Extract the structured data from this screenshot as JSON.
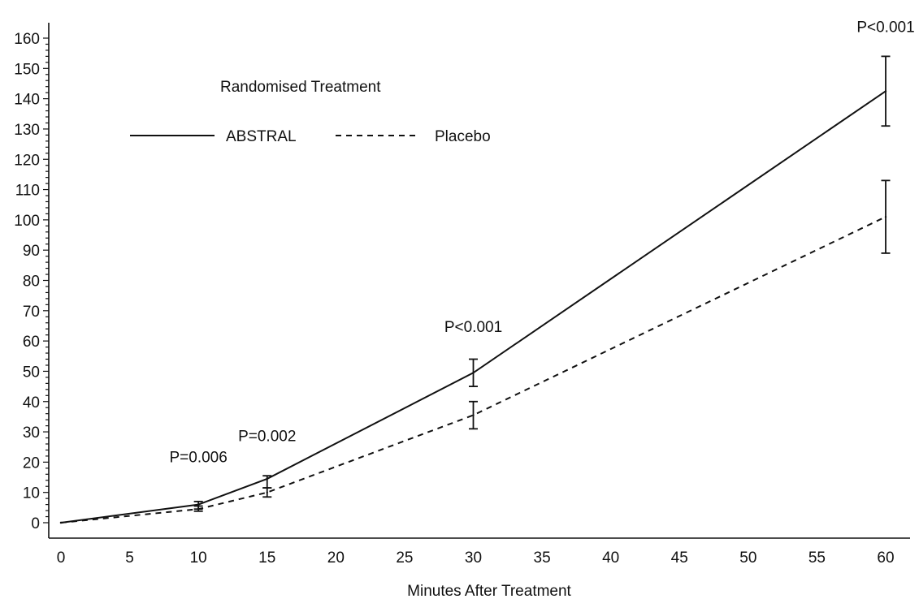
{
  "chart_data": {
    "type": "line",
    "title": "",
    "xlabel": "Minutes After Treatment",
    "ylabel": "",
    "x_ticks": [
      0,
      5,
      10,
      15,
      20,
      25,
      30,
      35,
      40,
      45,
      50,
      55,
      60
    ],
    "y_ticks": [
      0,
      10,
      20,
      30,
      40,
      50,
      60,
      70,
      80,
      90,
      100,
      110,
      120,
      130,
      140,
      150,
      160
    ],
    "xlim": [
      -0.6,
      61.5
    ],
    "ylim": [
      -2,
      164
    ],
    "grid": false,
    "legend": {
      "title": "Randomised Treatment",
      "placement": "top-left"
    },
    "series": [
      {
        "name": "ABSTRAL",
        "style": "solid",
        "color": "#111111",
        "points": [
          {
            "x": 0,
            "y": 0
          },
          {
            "x": 10,
            "y": 6
          },
          {
            "x": 15,
            "y": 14.5
          },
          {
            "x": 30,
            "y": 49.5
          },
          {
            "x": 60,
            "y": 142.5
          }
        ],
        "error_bars": [
          {
            "x": 10,
            "low": 4.5,
            "high": 7
          },
          {
            "x": 15,
            "low": 11.5,
            "high": 15.5
          },
          {
            "x": 30,
            "low": 45,
            "high": 54
          },
          {
            "x": 60,
            "low": 131,
            "high": 154
          }
        ]
      },
      {
        "name": "Placebo",
        "style": "dashed",
        "color": "#111111",
        "points": [
          {
            "x": 0,
            "y": 0
          },
          {
            "x": 10,
            "y": 4.5
          },
          {
            "x": 15,
            "y": 10
          },
          {
            "x": 30,
            "y": 35.5
          },
          {
            "x": 60,
            "y": 101
          }
        ],
        "error_bars": [
          {
            "x": 10,
            "low": 3.8,
            "high": 5.5
          },
          {
            "x": 15,
            "low": 8.5,
            "high": 11.5
          },
          {
            "x": 30,
            "low": 31,
            "high": 40
          },
          {
            "x": 60,
            "low": 89,
            "high": 113
          }
        ]
      }
    ],
    "annotations": [
      {
        "text": "P=0.006",
        "x": 10,
        "y": 20
      },
      {
        "text": "P=0.002",
        "x": 15,
        "y": 27
      },
      {
        "text": "P<0.001",
        "x": 30,
        "y": 63
      },
      {
        "text": "P<0.001",
        "x": 60,
        "y": 162
      }
    ]
  }
}
